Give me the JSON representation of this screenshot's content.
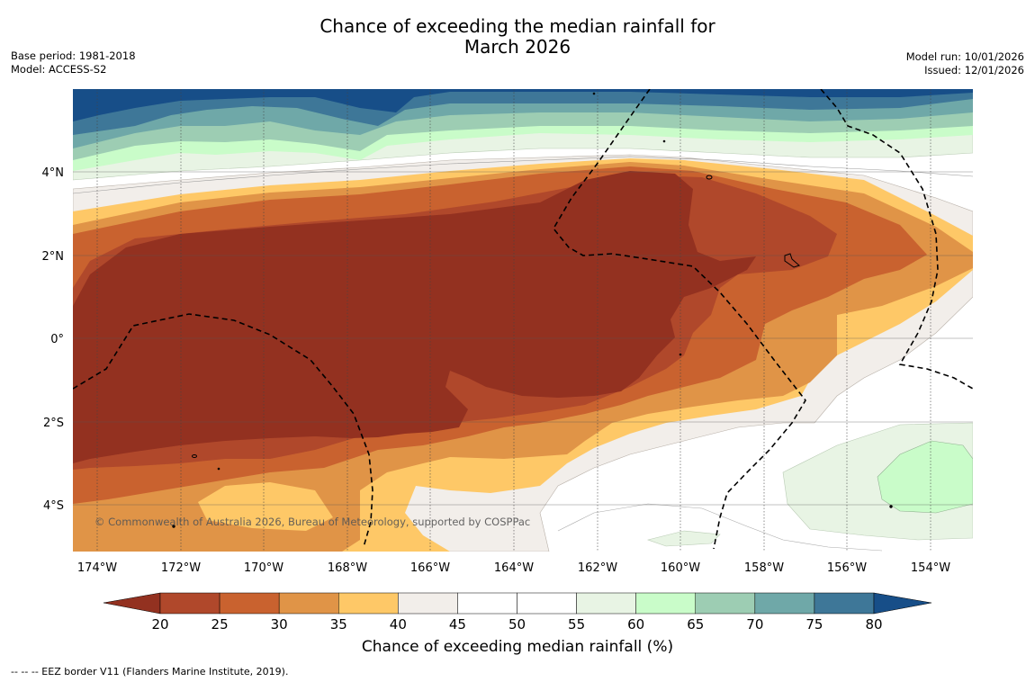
{
  "title": {
    "line1": "Chance of exceeding the median rainfall for",
    "line2": "March 2026"
  },
  "meta_left": {
    "base_period": "Base period: 1981-2018",
    "model": "Model: ACCESS-S2"
  },
  "meta_right": {
    "model_run": "Model run: 10/01/2026",
    "issued": "Issued: 12/01/2026"
  },
  "map": {
    "lon_range": [
      -174.6,
      -152.9
    ],
    "lat_range": [
      -5.2,
      5.9
    ],
    "lon_ticks": [
      {
        "value": -174,
        "label": "174°W"
      },
      {
        "value": -172,
        "label": "172°W"
      },
      {
        "value": -170,
        "label": "170°W"
      },
      {
        "value": -168,
        "label": "168°W"
      },
      {
        "value": -166,
        "label": "166°W"
      },
      {
        "value": -164,
        "label": "164°W"
      },
      {
        "value": -162,
        "label": "162°W"
      },
      {
        "value": -160,
        "label": "160°W"
      },
      {
        "value": -158,
        "label": "158°W"
      },
      {
        "value": -156,
        "label": "156°W"
      },
      {
        "value": -154,
        "label": "154°W"
      }
    ],
    "lat_ticks": [
      {
        "value": 4,
        "label": "4°N"
      },
      {
        "value": 2,
        "label": "2°N"
      },
      {
        "value": 0,
        "label": "0°"
      },
      {
        "value": -2,
        "label": "2°S"
      },
      {
        "value": -4,
        "label": "4°S"
      }
    ],
    "copyright": "© Commonwealth of Australia 2026, Bureau of Meteorology, supported by COSPPac"
  },
  "colorbar": {
    "title": "Chance of exceeding median rainfall (%)",
    "ticks": [
      "20",
      "25",
      "30",
      "35",
      "40",
      "45",
      "50",
      "55",
      "60",
      "65",
      "70",
      "75",
      "80"
    ],
    "colors": [
      "#933120",
      "#b0482b",
      "#c9622f",
      "#e09447",
      "#fec867",
      "#f2eeea",
      "#ffffff",
      "#ffffff",
      "#e8f4e4",
      "#c9fcc9",
      "#9dcdb3",
      "#6fa8a8",
      "#3e7798",
      "#174e88"
    ]
  },
  "footer": "--  --  -- EEZ border V11 (Flanders Marine Institute, 2019)."
}
